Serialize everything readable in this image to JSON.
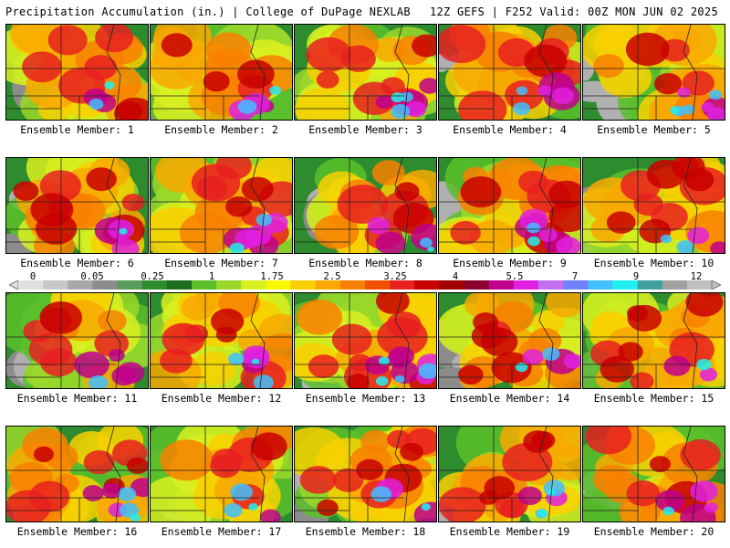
{
  "header": {
    "title": "Precipitation Accumulation (in.) | College of DuPage NEXLAB",
    "valid": "12Z GEFS | F252 Valid: 00Z MON JUN 02 2025"
  },
  "caption_prefix": "Ensemble Member: ",
  "members": [
    {
      "id": 1,
      "label": "Ensemble Member: 1"
    },
    {
      "id": 2,
      "label": "Ensemble Member: 2"
    },
    {
      "id": 3,
      "label": "Ensemble Member: 3"
    },
    {
      "id": 4,
      "label": "Ensemble Member: 4"
    },
    {
      "id": 5,
      "label": "Ensemble Member: 5"
    },
    {
      "id": 6,
      "label": "Ensemble Member: 6"
    },
    {
      "id": 7,
      "label": "Ensemble Member: 7"
    },
    {
      "id": 8,
      "label": "Ensemble Member: 8"
    },
    {
      "id": 9,
      "label": "Ensemble Member: 9"
    },
    {
      "id": 10,
      "label": "Ensemble Member: 10"
    },
    {
      "id": 11,
      "label": "Ensemble Member: 11"
    },
    {
      "id": 12,
      "label": "Ensemble Member: 12"
    },
    {
      "id": 13,
      "label": "Ensemble Member: 13"
    },
    {
      "id": 14,
      "label": "Ensemble Member: 14"
    },
    {
      "id": 15,
      "label": "Ensemble Member: 15"
    },
    {
      "id": 16,
      "label": "Ensemble Member: 16"
    },
    {
      "id": 17,
      "label": "Ensemble Member: 17"
    },
    {
      "id": 18,
      "label": "Ensemble Member: 18"
    },
    {
      "id": 19,
      "label": "Ensemble Member: 19"
    },
    {
      "id": 20,
      "label": "Ensemble Member: 20"
    }
  ],
  "colorbar": {
    "tick_labels": [
      "0",
      "0.05",
      "0.25",
      "1",
      "1.75",
      "2.5",
      "3.25",
      "4",
      "5.5",
      "7",
      "9",
      "12"
    ],
    "colors": [
      "#e0e0e0",
      "#c8c8c8",
      "#a8a8a8",
      "#8c8c8c",
      "#5a9a5a",
      "#2e8b2e",
      "#1e6e1e",
      "#5bbf2a",
      "#9ad82a",
      "#d8f020",
      "#f8f800",
      "#f8d000",
      "#f8a800",
      "#f88000",
      "#f05000",
      "#e82020",
      "#c80000",
      "#a00000",
      "#8c0030",
      "#c0008c",
      "#e020e0",
      "#c070f0",
      "#7080ff",
      "#40c0ff",
      "#20f0f0",
      "#40a0a0",
      "#a0a0a0",
      "#c0c0c0"
    ],
    "unit": "in."
  }
}
